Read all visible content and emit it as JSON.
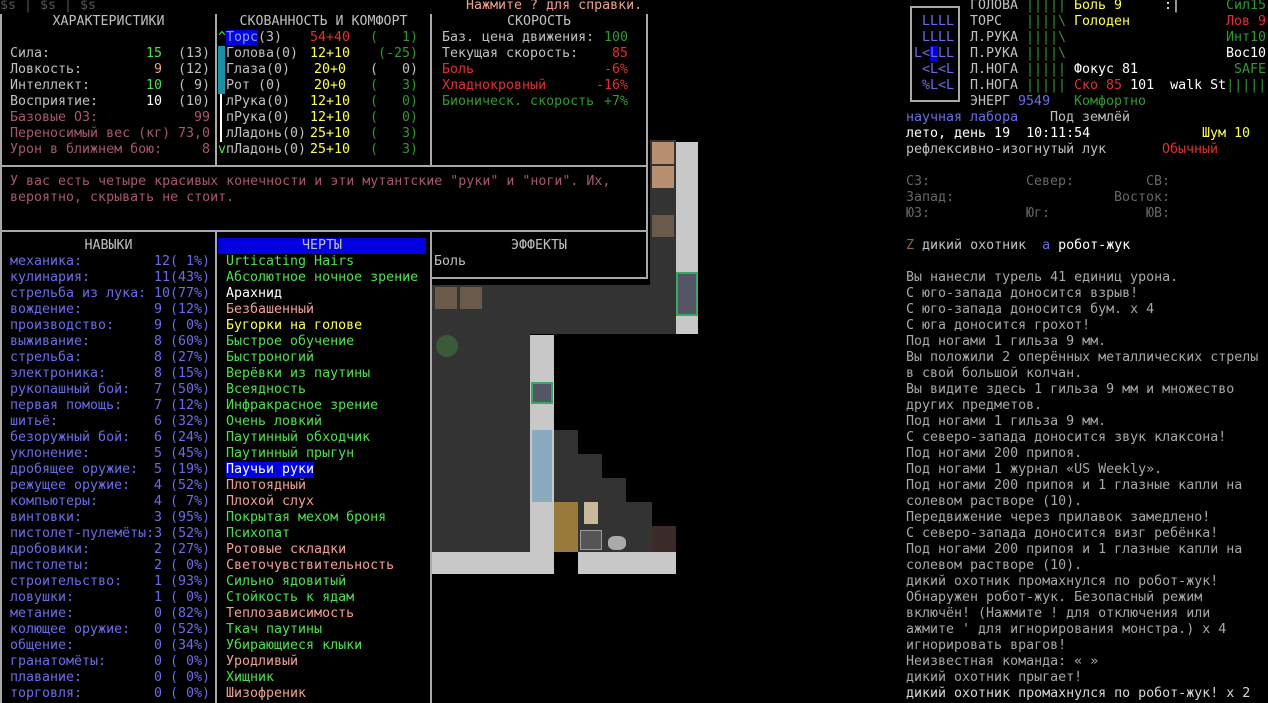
{
  "top_bar": {
    "left": "$s | $s | $s",
    "help": "Нажмите ? для справки."
  },
  "stats": {
    "title": "ХАРАКТЕРИСТИКИ",
    "rows": [
      {
        "label": "Сила:",
        "value": "15",
        "base": "(13)",
        "color": "#4ee04e",
        "lc": "#c0c0c0"
      },
      {
        "label": "Ловкость:",
        "value": "9",
        "base": "(12)",
        "color": "#f0a090",
        "lc": "#c0c0c0"
      },
      {
        "label": "Интеллект:",
        "value": "10",
        "base": "( 9)",
        "color": "#4ee04e",
        "lc": "#c0c0c0"
      },
      {
        "label": "Восприятие:",
        "value": "10",
        "base": "(10)",
        "color": "#ffffff",
        "lc": "#c0c0c0"
      },
      {
        "label": "Базовые ОЗ:",
        "value": "99",
        "base": "",
        "color": "#a85868",
        "lc": "#a85868"
      },
      {
        "label": "Переносимый вес (кг)",
        "value": "73,0",
        "base": "",
        "color": "#a85868",
        "lc": "#a85868"
      },
      {
        "label": "Урон в ближнем бою:",
        "value": "8",
        "base": "",
        "color": "#a85868",
        "lc": "#a85868"
      }
    ]
  },
  "encumbrance": {
    "title": "СКОВАННОСТЬ И КОМФОРТ",
    "rows": [
      {
        "mark": "^",
        "part": "Торс",
        "n": "(3)",
        "a": "54",
        "b": "40",
        "c": "(   1)",
        "sel": true,
        "vc": "#e03030",
        "cc": "#2f9a2f"
      },
      {
        "mark": "",
        "part": "Голова",
        "n": "(0)",
        "a": "12",
        "b": "10",
        "c": "(-25)",
        "vc": "#ffff55",
        "cc": "#2f9a2f"
      },
      {
        "mark": "",
        "part": "Глаза",
        "n": "(0)",
        "a": "20",
        "b": "0",
        "c": "(   0)",
        "vc": "#ffff55",
        "cc": "#c0c0c0"
      },
      {
        "mark": "",
        "part": "Рот ",
        "n": "(0)",
        "a": "20",
        "b": "0",
        "c": "(   3)",
        "vc": "#ffff55",
        "cc": "#2f9a2f"
      },
      {
        "mark": "",
        "part": "лРука",
        "n": "(0)",
        "a": "12",
        "b": "10",
        "c": "(   0)",
        "vc": "#ffff55",
        "cc": "#2f9a2f"
      },
      {
        "mark": "",
        "part": "пРука",
        "n": "(0)",
        "a": "12",
        "b": "10",
        "c": "(   0)",
        "vc": "#ffff55",
        "cc": "#2f9a2f"
      },
      {
        "mark": "",
        "part": "лЛадонь",
        "n": "(0)",
        "a": "25",
        "b": "10",
        "c": "(   3)",
        "vc": "#ffff55",
        "cc": "#2f9a2f"
      },
      {
        "mark": "v",
        "part": "пЛадонь",
        "n": "(0)",
        "a": "25",
        "b": "10",
        "c": "(   3)",
        "vc": "#ffff55",
        "cc": "#2f9a2f"
      }
    ]
  },
  "speed": {
    "title": "СКОРОСТЬ",
    "rows": [
      {
        "label": "Баз. цена движения:",
        "value": "100",
        "lc": "#c0c0c0",
        "vc": "#2f9a2f"
      },
      {
        "label": "Текущая скорость:",
        "value": "85",
        "lc": "#c0c0c0",
        "vc": "#e03030"
      },
      {
        "label": "Боль",
        "value": "-6%",
        "lc": "#e03030",
        "vc": "#e03030"
      },
      {
        "label": "Хладнокровный",
        "value": "-16%",
        "lc": "#e03030",
        "vc": "#e03030"
      },
      {
        "label": "Бионическ. скорость",
        "value": "+7%",
        "lc": "#2f9a2f",
        "vc": "#2f9a2f"
      }
    ]
  },
  "description": [
    "У вас есть четыре красивых конечности и эти мутантские \"руки\" и \"ноги\". Их,",
    "вероятно, скрывать не стоит."
  ],
  "skills": {
    "title": "НАВЫКИ",
    "rows": [
      [
        "механика:",
        "12( 1%)"
      ],
      [
        "кулинария:",
        "11(43%)"
      ],
      [
        "стрельба из лука:",
        "10(77%)"
      ],
      [
        "вождение:",
        "9 (12%)"
      ],
      [
        "производство:",
        "9 ( 0%)"
      ],
      [
        "выживание:",
        "8 (60%)"
      ],
      [
        "стрельба:",
        "8 (27%)"
      ],
      [
        "электроника:",
        "8 (15%)"
      ],
      [
        "рукопашный бой:",
        "7 (50%)"
      ],
      [
        "первая помощь:",
        "7 (12%)"
      ],
      [
        "шитьё:",
        "6 (32%)"
      ],
      [
        "безоружный бой:",
        "6 (24%)"
      ],
      [
        "уклонение:",
        "5 (45%)"
      ],
      [
        "дробящее оружие:",
        "5 (19%)"
      ],
      [
        "режущее оружие:",
        "4 (52%)"
      ],
      [
        "компьютеры:",
        "4 ( 7%)"
      ],
      [
        "винтовки:",
        "3 (95%)"
      ],
      [
        "пистолет-пулемёты:",
        "3 (52%)"
      ],
      [
        "дробовики:",
        "2 (27%)"
      ],
      [
        "пистолеты:",
        "2 ( 0%)"
      ],
      [
        "строительство:",
        "1 (93%)"
      ],
      [
        "ловушки:",
        "1 ( 0%)"
      ],
      [
        "метание:",
        "0 (82%)"
      ],
      [
        "колющее оружие:",
        "0 (52%)"
      ],
      [
        "общение:",
        "0 (34%)"
      ],
      [
        "гранатомёты:",
        "0 ( 0%)"
      ],
      [
        "плавание:",
        "0 ( 0%)"
      ],
      [
        "торговля:",
        "0 ( 0%)"
      ]
    ]
  },
  "traits": {
    "title": "ЧЕРТЫ",
    "selected_index": 13,
    "rows": [
      [
        "Urticating Hairs",
        "#4ee04e"
      ],
      [
        "Абсолютное ночное зрение",
        "#4ee04e"
      ],
      [
        "Арахнид",
        "#ffffff"
      ],
      [
        "Безбашенный",
        "#f0a090"
      ],
      [
        "Бугорки на голове",
        "#ffff55"
      ],
      [
        "Быстрое обучение",
        "#4ee04e"
      ],
      [
        "Быстроногий",
        "#4ee04e"
      ],
      [
        "Верёвки из паутины",
        "#4ee04e"
      ],
      [
        "Всеядность",
        "#4ee04e"
      ],
      [
        "Инфракрасное зрение",
        "#4ee04e"
      ],
      [
        "Очень ловкий",
        "#4ee04e"
      ],
      [
        "Паутинный обходчик",
        "#4ee04e"
      ],
      [
        "Паутинный прыгун",
        "#4ee04e"
      ],
      [
        "Паучьи руки",
        "#ffffff"
      ],
      [
        "Плотоядный",
        "#f0a090"
      ],
      [
        "Плохой слух",
        "#f0a090"
      ],
      [
        "Покрытая мехом броня",
        "#4ee04e"
      ],
      [
        "Психопат",
        "#4ee04e"
      ],
      [
        "Ротовые складки",
        "#f0a090"
      ],
      [
        "Светочувствительность",
        "#f0a090"
      ],
      [
        "Сильно ядовитый",
        "#4ee04e"
      ],
      [
        "Стойкость к ядам",
        "#4ee04e"
      ],
      [
        "Теплозависимость",
        "#f0a090"
      ],
      [
        "Ткач паутины",
        "#4ee04e"
      ],
      [
        "Убирающиеся клыки",
        "#4ee04e"
      ],
      [
        "Уродливый",
        "#f0a090"
      ],
      [
        "Хищник",
        "#4ee04e"
      ],
      [
        "Шизофреник",
        "#f0a090"
      ]
    ]
  },
  "effects": {
    "title": "ЭФФЕКТЫ",
    "items": [
      "Боль"
    ]
  },
  "sidebar": {
    "body_glyphs": [
      "LLLL",
      "LLLL",
      "L<",
      "L",
      "LL",
      "<L<L",
      "%L<L"
    ],
    "parts": [
      [
        "ГОЛОВА",
        "|||||"
      ],
      [
        "ТОРС",
        "||||\\"
      ],
      [
        "Л.РУКА",
        "||||\\"
      ],
      [
        "П.РУКА",
        "||||\\"
      ],
      [
        "Л.НОГА",
        "|||||"
      ],
      [
        "П.НОГА",
        "|||||"
      ]
    ],
    "pain": "Боль 9",
    "face": ":|",
    "hunger": "Голоден",
    "focus": "Фокус 81",
    "speed_label": "Ско",
    "speed": "85",
    "move": "101",
    "walk": "walk",
    "stamina_label": "St",
    "stamina": "|||||",
    "power_label": "ЭНЕРГ",
    "power": "9549",
    "temperature": "Комфортно",
    "stats": [
      "Сил15",
      "Лов 9",
      "Инт10",
      "Вос10",
      "SAFE"
    ],
    "location": "научная лабора",
    "level": "Под землёй",
    "date": "лето, день 19",
    "time": "10:11:54",
    "noise": "Шум 10",
    "weapon": "рефлексивно-изогнутый лук",
    "weapon_mode": "Обычный",
    "compass": {
      "nw": "СЗ:",
      "n": "Север:",
      "ne": "СВ:",
      "w": "Запад:",
      "e": "Восток:",
      "sw": "ЮЗ:",
      "s": "Юг:",
      "se": "ЮВ:"
    },
    "monsters": [
      {
        "glyph": "Z",
        "name": "дикий охотник"
      },
      {
        "glyph": "a",
        "name": "робот-жук"
      }
    ]
  },
  "messages": [
    "Вы нанесли турель 41 единиц урона.",
    "С юго-запада доносится взрыв!",
    "С юго-запада доносится бум. x 4",
    "С юга доносится грохот!",
    "Под ногами 1 гильза 9 мм.",
    "Вы положили 2 оперённых металлических стрелы",
    "в свой большой колчан.",
    "Вы видите здесь 1 гильза 9 мм и множество",
    "других предметов.",
    "Под ногами 1 гильза 9 мм.",
    "С северо-запада доносится звук клаксона!",
    "Под ногами 200 припоя.",
    "Под ногами 1 журнал «US Weekly».",
    "Под ногами 200 припоя и 1 глазные капли на",
    "солевом растворе (10).",
    "Передвижение через прилавок замедлено!",
    "С северо-запада доносится визг ребёнка!",
    "Под ногами 200 припоя и 1 глазные капли на",
    "солевом растворе (10).",
    "дикий охотник промахнулся по робот-жук!",
    "Обнаружен робот-жук. Безопасный режим",
    "включён! (Нажмите ! для отключения или",
    "ажмите ' для игнорирования монстра.) x 4",
    "игнорировать врагов!",
    "Неизвестная команда: « »",
    "дикий охотник прыгает!",
    "дикий охотник промахнулся по робот-жук! x 2"
  ]
}
